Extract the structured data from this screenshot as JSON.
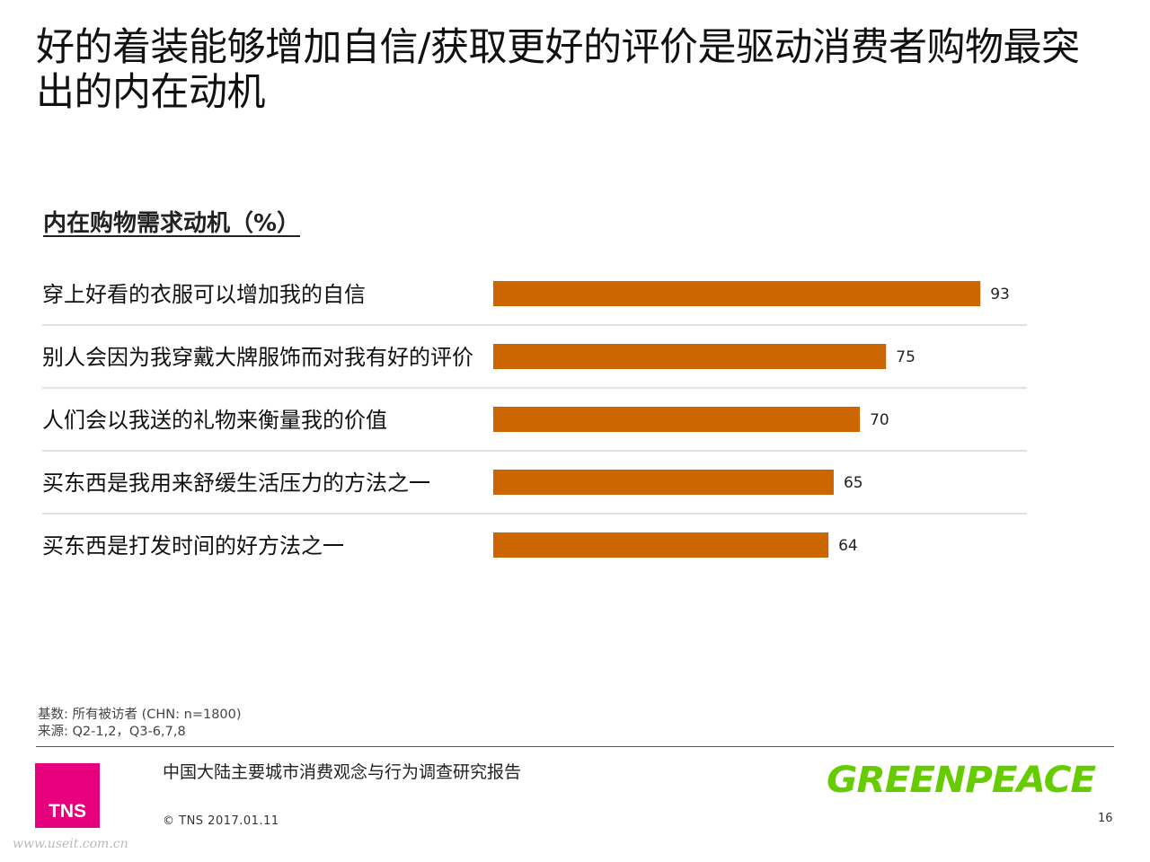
{
  "title": "好的着装能够增加自信/获取更好的评价是驱动消费者购物最突出的内在动机",
  "chart_data": {
    "type": "bar",
    "orientation": "horizontal",
    "title": "内在购物需求动机（%）",
    "categories": [
      "穿上好看的衣服可以增加我的自信",
      "别人会因为我穿戴大牌服饰而对我有好的评价",
      "人们会以我送的礼物来衡量我的价值",
      "买东西是我用来舒缓生活压力的方法之一",
      "买东西是打发时间的好方法之一"
    ],
    "values": [
      93,
      75,
      70,
      65,
      64
    ],
    "xlim": [
      0,
      100
    ],
    "bar_color": "#cc6600",
    "grid": false
  },
  "footer": {
    "base": "基数: 所有被访者 (CHN: n=1800)",
    "source": "来源: Q2-1,2，Q3-6,7,8",
    "report_name": "中国大陆主要城市消费观念与行为调查研究报告",
    "copyright": "© TNS 2017.01.11",
    "page_number": "16",
    "tns_logo": "TNS",
    "greenpeace_logo": "GREENPEACE",
    "watermark": "www.useit.com.cn"
  }
}
